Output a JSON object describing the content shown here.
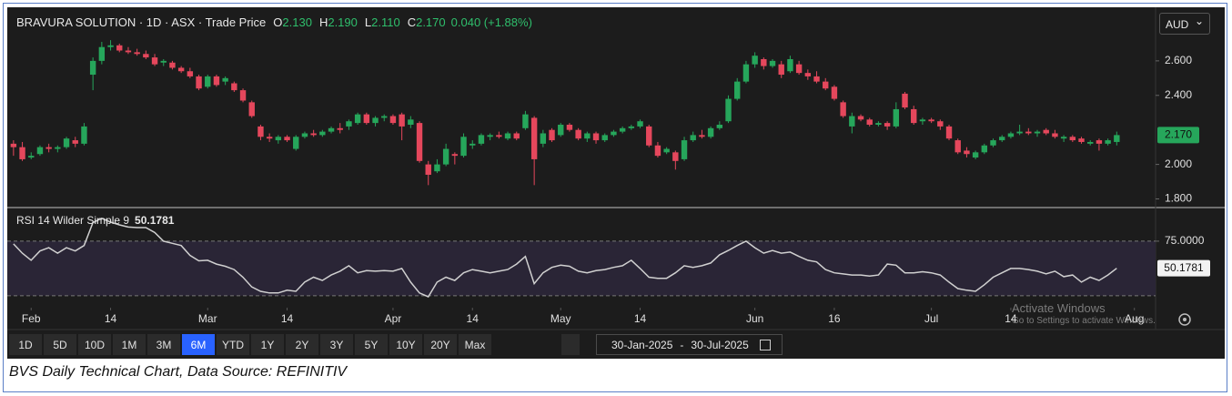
{
  "chart_data": [
    {
      "type": "candlestick",
      "title": "BRAVURA SOLUTION · 1D · ASX · Trade Price",
      "up_color": "#26a65b",
      "down_color": "#e5475c",
      "open": [
        2.12,
        2.1,
        2.04,
        2.06,
        2.1,
        2.09,
        2.1,
        2.14,
        2.12,
        2.52,
        2.6,
        2.68,
        2.69,
        2.66,
        2.65,
        2.64,
        2.62,
        2.59,
        2.59,
        2.56,
        2.54,
        2.51,
        2.45,
        2.51,
        2.48,
        2.47,
        2.43,
        2.36,
        2.22,
        2.16,
        2.14,
        2.16,
        2.09,
        2.16,
        2.18,
        2.17,
        2.19,
        2.21,
        2.22,
        2.24,
        2.29,
        2.24,
        2.27,
        2.28,
        2.29,
        2.23,
        2.24,
        2.0,
        1.96,
        2.0,
        2.06,
        2.05,
        2.11,
        2.12,
        2.16,
        2.17,
        2.15,
        2.18,
        2.21,
        2.27,
        2.12,
        2.2,
        2.17,
        2.23,
        2.2,
        2.15,
        2.18,
        2.14,
        2.17,
        2.19,
        2.21,
        2.22,
        2.22,
        2.11,
        2.07,
        2.07,
        2.03,
        2.14,
        2.17,
        2.16,
        2.21,
        2.25,
        2.38,
        2.48,
        2.58,
        2.61,
        2.57,
        2.58,
        2.54,
        2.58,
        2.53,
        2.51,
        2.48,
        2.45,
        2.36,
        2.22,
        2.28,
        2.26,
        2.23,
        2.24,
        2.22,
        2.41,
        2.32,
        2.25,
        2.26,
        2.25,
        2.22,
        2.14,
        2.08,
        2.04,
        2.07,
        2.11,
        2.14,
        2.16,
        2.18,
        2.19,
        2.18,
        2.2,
        2.18,
        2.15,
        2.16,
        2.15,
        2.12,
        2.14,
        2.12,
        2.13
      ],
      "high": [
        2.14,
        2.13,
        2.07,
        2.11,
        2.12,
        2.11,
        2.16,
        2.16,
        2.24,
        2.62,
        2.71,
        2.72,
        2.7,
        2.68,
        2.67,
        2.66,
        2.64,
        2.61,
        2.6,
        2.57,
        2.56,
        2.52,
        2.52,
        2.52,
        2.51,
        2.48,
        2.44,
        2.37,
        2.23,
        2.18,
        2.17,
        2.17,
        2.17,
        2.19,
        2.2,
        2.2,
        2.22,
        2.24,
        2.26,
        2.3,
        2.3,
        2.28,
        2.29,
        2.29,
        2.3,
        2.28,
        2.25,
        2.02,
        2.03,
        2.12,
        2.07,
        2.18,
        2.14,
        2.18,
        2.18,
        2.19,
        2.19,
        2.19,
        2.31,
        2.28,
        2.2,
        2.21,
        2.24,
        2.24,
        2.21,
        2.19,
        2.19,
        2.18,
        2.2,
        2.22,
        2.23,
        2.26,
        2.23,
        2.13,
        2.1,
        2.08,
        2.16,
        2.19,
        2.2,
        2.22,
        2.25,
        2.4,
        2.5,
        2.6,
        2.65,
        2.62,
        2.61,
        2.6,
        2.63,
        2.6,
        2.55,
        2.54,
        2.5,
        2.46,
        2.37,
        2.3,
        2.29,
        2.27,
        2.25,
        2.25,
        2.36,
        2.42,
        2.34,
        2.27,
        2.27,
        2.26,
        2.23,
        2.15,
        2.1,
        2.08,
        2.12,
        2.15,
        2.17,
        2.19,
        2.23,
        2.21,
        2.2,
        2.21,
        2.2,
        2.17,
        2.17,
        2.16,
        2.14,
        2.15,
        2.15,
        2.19
      ],
      "low": [
        2.05,
        2.02,
        2.03,
        2.05,
        2.07,
        2.07,
        2.09,
        2.1,
        2.11,
        2.43,
        2.58,
        2.66,
        2.65,
        2.64,
        2.63,
        2.61,
        2.57,
        2.57,
        2.55,
        2.53,
        2.5,
        2.43,
        2.44,
        2.45,
        2.46,
        2.42,
        2.36,
        2.27,
        2.14,
        2.13,
        2.12,
        2.13,
        2.08,
        2.15,
        2.16,
        2.16,
        2.18,
        2.18,
        2.2,
        2.23,
        2.23,
        2.22,
        2.25,
        2.23,
        2.14,
        2.21,
        2.01,
        1.88,
        1.95,
        1.99,
        2.0,
        2.04,
        2.09,
        2.11,
        2.14,
        2.15,
        2.14,
        2.14,
        2.2,
        1.88,
        2.1,
        2.13,
        2.16,
        2.19,
        2.14,
        2.13,
        2.12,
        2.13,
        2.16,
        2.18,
        2.2,
        2.21,
        2.1,
        2.04,
        2.06,
        1.97,
        2.02,
        2.13,
        2.15,
        2.15,
        2.2,
        2.24,
        2.37,
        2.47,
        2.56,
        2.55,
        2.56,
        2.5,
        2.53,
        2.52,
        2.49,
        2.47,
        2.43,
        2.37,
        2.27,
        2.18,
        2.25,
        2.22,
        2.22,
        2.2,
        2.21,
        2.32,
        2.23,
        2.23,
        2.24,
        2.2,
        2.14,
        2.06,
        2.04,
        2.03,
        2.06,
        2.1,
        2.13,
        2.15,
        2.17,
        2.17,
        2.16,
        2.17,
        2.15,
        2.13,
        2.13,
        2.12,
        2.11,
        2.08,
        2.11,
        2.11
      ],
      "close": [
        2.1,
        2.03,
        2.05,
        2.1,
        2.09,
        2.1,
        2.15,
        2.12,
        2.22,
        2.6,
        2.68,
        2.69,
        2.66,
        2.65,
        2.64,
        2.62,
        2.58,
        2.6,
        2.56,
        2.54,
        2.51,
        2.44,
        2.51,
        2.46,
        2.5,
        2.43,
        2.37,
        2.28,
        2.16,
        2.15,
        2.16,
        2.14,
        2.16,
        2.18,
        2.17,
        2.19,
        2.21,
        2.2,
        2.25,
        2.29,
        2.24,
        2.27,
        2.28,
        2.24,
        2.22,
        2.26,
        2.02,
        1.94,
        2.0,
        2.09,
        2.05,
        2.16,
        2.12,
        2.17,
        2.17,
        2.16,
        2.18,
        2.15,
        2.29,
        2.03,
        2.18,
        2.14,
        2.23,
        2.2,
        2.15,
        2.18,
        2.14,
        2.17,
        2.19,
        2.21,
        2.22,
        2.25,
        2.11,
        2.05,
        2.09,
        2.02,
        2.14,
        2.17,
        2.16,
        2.21,
        2.23,
        2.38,
        2.48,
        2.58,
        2.63,
        2.57,
        2.6,
        2.52,
        2.61,
        2.53,
        2.51,
        2.48,
        2.44,
        2.38,
        2.28,
        2.28,
        2.26,
        2.23,
        2.24,
        2.22,
        2.32,
        2.33,
        2.24,
        2.26,
        2.25,
        2.22,
        2.15,
        2.07,
        2.06,
        2.07,
        2.11,
        2.14,
        2.16,
        2.18,
        2.19,
        2.18,
        2.19,
        2.18,
        2.16,
        2.16,
        2.14,
        2.13,
        2.13,
        2.12,
        2.14,
        2.17
      ],
      "last_label": "2.170",
      "ylim": [
        1.75,
        2.9
      ],
      "yticks": [
        {
          "value": 1.8,
          "label": "1.800"
        },
        {
          "value": 2.0,
          "label": "2.000"
        },
        {
          "value": 2.4,
          "label": "2.400"
        },
        {
          "value": 2.6,
          "label": "2.600"
        }
      ],
      "xlim": [
        -0.5,
        129.4
      ]
    },
    {
      "type": "line",
      "title": "RSI 14 Wilder Simple 9",
      "color": "#d0d0d0",
      "band_color": "#2a2536",
      "values": [
        72.5,
        64,
        57.5,
        66,
        69,
        64,
        69,
        66,
        71,
        92,
        96,
        92.5,
        90,
        88,
        87.5,
        87.5,
        83,
        75,
        73,
        71,
        62,
        57,
        57.5,
        54,
        52,
        49,
        42,
        33,
        29,
        27.5,
        27.5,
        30,
        29,
        37.5,
        42,
        39,
        44,
        47.5,
        52.5,
        46,
        48,
        47.5,
        48,
        47.5,
        50,
        37.5,
        27.5,
        24,
        37.5,
        42,
        39,
        46,
        49,
        47.5,
        46,
        47.5,
        49,
        54,
        61,
        36,
        46,
        51,
        53,
        52,
        47.5,
        46,
        48,
        49,
        51,
        52.5,
        57.5,
        50,
        42,
        41,
        41,
        46,
        52.5,
        51,
        52.5,
        55,
        62.5,
        66.5,
        71,
        75,
        69,
        64,
        66.5,
        64,
        65,
        61,
        57.5,
        56,
        49,
        46,
        45,
        44,
        44,
        43,
        44,
        54,
        53,
        46,
        46,
        47,
        46,
        44,
        37.5,
        31.5,
        30,
        29,
        35,
        42,
        46,
        50,
        50,
        49,
        47.5,
        45,
        47.5,
        42.5,
        44,
        37.5,
        42,
        39,
        44,
        50.1781
      ],
      "bands": [
        25,
        75
      ],
      "ylim": [
        14,
        105
      ],
      "yticks": [
        {
          "value": 75,
          "label": "75.0000"
        }
      ],
      "xlim": [
        -0.5,
        129.4
      ],
      "xticks": [
        {
          "value": 2,
          "label": "Feb"
        },
        {
          "value": 11,
          "label": "14"
        },
        {
          "value": 22,
          "label": "Mar"
        },
        {
          "value": 31,
          "label": "14"
        },
        {
          "value": 43,
          "label": "Apr"
        },
        {
          "value": 52,
          "label": "14"
        },
        {
          "value": 62,
          "label": "May"
        },
        {
          "value": 71,
          "label": "14"
        },
        {
          "value": 84,
          "label": "Jun"
        },
        {
          "value": 93,
          "label": "16"
        },
        {
          "value": 104,
          "label": "Jul"
        },
        {
          "value": 113,
          "label": "14"
        },
        {
          "value": 127,
          "label": "Aug"
        }
      ]
    }
  ],
  "legend": {
    "items": [
      {
        "key": "O",
        "value": "2.130"
      },
      {
        "key": "H",
        "value": "2.190"
      },
      {
        "key": "L",
        "value": "2.110"
      },
      {
        "key": "C",
        "value": "2.170"
      }
    ],
    "change": "0.040 (+1.88%)"
  },
  "currency": "AUD",
  "toolbar": {
    "ranges": [
      "1D",
      "5D",
      "10D",
      "1M",
      "3M",
      "6M",
      "YTD",
      "1Y",
      "2Y",
      "3Y",
      "5Y",
      "10Y",
      "20Y",
      "Max"
    ],
    "active": "6M",
    "date_from": "30-Jan-2025",
    "date_sep": "-",
    "date_to": "30-Jul-2025"
  },
  "watermark": {
    "title": "Activate Windows",
    "text": "Go to Settings to activate Windows."
  },
  "caption": "BVS Daily Technical Chart, Data Source: REFINITIV"
}
